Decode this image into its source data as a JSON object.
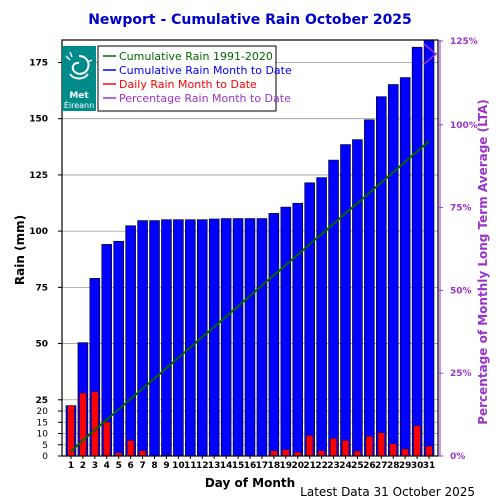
{
  "chart_data": {
    "type": "bar",
    "title": "Newport - Cumulative Rain October   2025",
    "xlabel": "Day of Month",
    "ylabel": "Rain (mm)",
    "y2label": "Percentage  of Monthly Long Term Average (LTA)",
    "ylim": [
      0,
      185
    ],
    "y2lim": [
      0,
      125
    ],
    "y_ticks": [
      0,
      5,
      10,
      15,
      20,
      25,
      50,
      75,
      100,
      125,
      150,
      175
    ],
    "y2_ticks": [
      "0%",
      "25%",
      "50%",
      "75%",
      "100%",
      "125%"
    ],
    "categories": [
      "1",
      "2",
      "3",
      "4",
      "5",
      "6",
      "7",
      "8",
      "9",
      "10",
      "11",
      "12",
      "13",
      "14",
      "15",
      "16",
      "17",
      "18",
      "19",
      "20",
      "21",
      "22",
      "23",
      "24",
      "25",
      "26",
      "27",
      "28",
      "29",
      "30",
      "31"
    ],
    "series": [
      {
        "name": "Cumulative Rain Month to Date",
        "color": "#0000ff",
        "values": [
          22.4,
          50.4,
          79.0,
          94.1,
          95.5,
          102.4,
          104.7,
          104.7,
          105.1,
          105.1,
          105.1,
          105.1,
          105.4,
          105.6,
          105.6,
          105.6,
          105.6,
          107.9,
          110.7,
          112.4,
          121.5,
          123.8,
          131.6,
          138.5,
          140.7,
          149.5,
          159.8,
          165.2,
          168.3,
          181.8,
          186.2
        ]
      },
      {
        "name": "Daily Rain Month to Date",
        "color": "#ff0000",
        "values": [
          22.4,
          28.0,
          28.6,
          15.1,
          1.4,
          6.9,
          2.3,
          0.0,
          0.4,
          0.0,
          0.0,
          0.0,
          0.3,
          0.2,
          0.0,
          0.0,
          0.0,
          2.3,
          2.8,
          1.7,
          9.1,
          2.3,
          7.8,
          6.9,
          2.2,
          8.8,
          10.3,
          5.4,
          3.1,
          13.5,
          4.4
        ]
      },
      {
        "name": "Cumulative Rain 1991-2020",
        "color": "#006600",
        "values": [
          2.0,
          7.0,
          11.6,
          16.2,
          20.8,
          25.4,
          29.9,
          34.5,
          39.1,
          43.7,
          48.3,
          52.9,
          57.4,
          62.0,
          66.6,
          71.2,
          75.8,
          80.4,
          84.9,
          89.5,
          94.1,
          98.7,
          103.3,
          107.9,
          112.4,
          117.0,
          121.6,
          126.2,
          130.8,
          135.4,
          140.0
        ]
      },
      {
        "name": "Percentage Rain Month to Date",
        "color": "#9933cc",
        "values_percent": [
          121,
          127
        ]
      }
    ],
    "legend_position": "top-left",
    "footer": "Latest Data 31 October 2025",
    "grid": true
  },
  "logo": {
    "text_line1": "Met",
    "text_line2": "Éireann",
    "color": "#008080"
  }
}
